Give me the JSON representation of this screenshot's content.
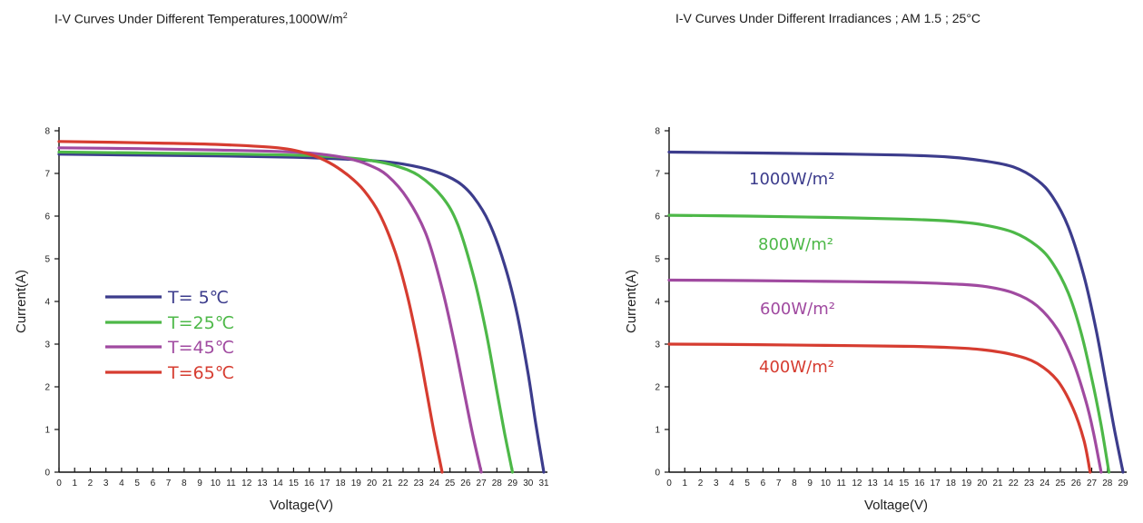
{
  "chart_data": [
    {
      "type": "line",
      "title": "I-V Curves Under Different Temperatures,1000W/m",
      "title_sup": "2",
      "xlabel": "Voltage(V)",
      "ylabel": "Current(A)",
      "xlim": [
        0,
        31
      ],
      "ylim": [
        0,
        8
      ],
      "xticks": [
        0,
        1,
        2,
        3,
        4,
        5,
        6,
        7,
        8,
        9,
        10,
        11,
        12,
        13,
        14,
        15,
        16,
        17,
        18,
        19,
        20,
        21,
        22,
        23,
        24,
        25,
        26,
        27,
        28,
        29,
        30,
        31
      ],
      "yticks": [
        0,
        1,
        2,
        3,
        4,
        5,
        6,
        7,
        8
      ],
      "series": [
        {
          "name": "T=  5℃",
          "color": "#3c3c8c",
          "x": [
            0,
            5,
            10,
            15,
            18,
            20,
            22,
            24,
            25.5,
            26.5,
            27.5,
            28.5,
            29.3,
            30.0,
            30.5,
            31.0
          ],
          "y": [
            7.45,
            7.43,
            7.41,
            7.38,
            7.34,
            7.3,
            7.22,
            7.05,
            6.8,
            6.45,
            5.85,
            4.85,
            3.7,
            2.3,
            1.1,
            0.0
          ]
        },
        {
          "name": "T=25℃",
          "color": "#4db848",
          "x": [
            0,
            5,
            10,
            15,
            18,
            20,
            21.5,
            23,
            24.5,
            25.5,
            26.5,
            27.3,
            28.0,
            28.5,
            29.0
          ],
          "y": [
            7.5,
            7.48,
            7.46,
            7.43,
            7.38,
            7.3,
            7.18,
            6.95,
            6.45,
            5.8,
            4.6,
            3.3,
            1.9,
            0.9,
            0.0
          ]
        },
        {
          "name": "T=45℃",
          "color": "#a04aa0",
          "x": [
            0,
            5,
            10,
            15,
            17,
            18.5,
            19.8,
            21,
            22.3,
            23.5,
            24.5,
            25.3,
            26.0,
            26.5,
            27.0
          ],
          "y": [
            7.6,
            7.58,
            7.55,
            7.5,
            7.44,
            7.35,
            7.2,
            6.95,
            6.4,
            5.55,
            4.3,
            3.0,
            1.7,
            0.8,
            0.0
          ]
        },
        {
          "name": "T=65℃",
          "color": "#d63c30",
          "x": [
            0,
            5,
            10,
            14,
            16,
            17.3,
            18.5,
            19.5,
            20.5,
            21.5,
            22.3,
            23.0,
            23.5,
            24.0,
            24.5
          ],
          "y": [
            7.75,
            7.72,
            7.68,
            7.6,
            7.45,
            7.25,
            6.95,
            6.6,
            6.05,
            5.15,
            4.1,
            2.9,
            1.9,
            0.9,
            0.0
          ]
        }
      ],
      "legend": {
        "position": "left-middle",
        "entries": [
          "T=  5℃",
          "T=25℃",
          "T=45℃",
          "T=65℃"
        ]
      }
    },
    {
      "type": "line",
      "title": "I-V Curves Under Different Irradiances ; AM 1.5 ; 25°C",
      "xlabel": "Voltage(V)",
      "ylabel": "Current(A)",
      "xlim": [
        0,
        29
      ],
      "ylim": [
        0,
        8
      ],
      "xticks": [
        0,
        1,
        2,
        3,
        4,
        5,
        6,
        7,
        8,
        9,
        10,
        11,
        12,
        13,
        14,
        15,
        16,
        17,
        18,
        19,
        20,
        21,
        22,
        23,
        24,
        25,
        26,
        27,
        28,
        29
      ],
      "yticks": [
        0,
        1,
        2,
        3,
        4,
        5,
        6,
        7,
        8
      ],
      "series": [
        {
          "name": "1000W/m",
          "sup": "2",
          "color": "#3c3c8c",
          "x": [
            0,
            5,
            10,
            15,
            18,
            20,
            22,
            23.5,
            24.5,
            25.5,
            26.5,
            27.3,
            28.0,
            28.5,
            29.0
          ],
          "y": [
            7.5,
            7.48,
            7.46,
            7.43,
            7.38,
            7.3,
            7.15,
            6.85,
            6.45,
            5.75,
            4.6,
            3.3,
            1.9,
            0.9,
            0.0
          ]
        },
        {
          "name": "800W/m",
          "sup": "2",
          "color": "#4db848",
          "x": [
            0,
            5,
            10,
            15,
            18,
            20,
            22,
            23.5,
            24.5,
            25.5,
            26.3,
            27.0,
            27.6,
            28.1
          ],
          "y": [
            6.02,
            6.0,
            5.97,
            5.93,
            5.88,
            5.8,
            5.62,
            5.3,
            4.9,
            4.2,
            3.3,
            2.2,
            1.1,
            0.0
          ]
        },
        {
          "name": "600W/m",
          "sup": "2",
          "color": "#a04aa0",
          "x": [
            0,
            5,
            10,
            15,
            18,
            20,
            22,
            23.5,
            24.8,
            25.8,
            26.6,
            27.1,
            27.6
          ],
          "y": [
            4.5,
            4.49,
            4.47,
            4.45,
            4.41,
            4.36,
            4.2,
            3.9,
            3.35,
            2.6,
            1.7,
            0.95,
            0.0
          ]
        },
        {
          "name": "400W/m",
          "sup": "2",
          "color": "#d63c30",
          "x": [
            0,
            5,
            10,
            15,
            18,
            20,
            22,
            23.5,
            24.8,
            25.8,
            26.5,
            26.9
          ],
          "y": [
            3.0,
            2.99,
            2.97,
            2.95,
            2.92,
            2.87,
            2.75,
            2.55,
            2.15,
            1.5,
            0.75,
            0.0
          ]
        }
      ],
      "annotations": [
        "1000W/m²",
        "800W/m²",
        "600W/m²",
        "400W/m²"
      ]
    }
  ]
}
